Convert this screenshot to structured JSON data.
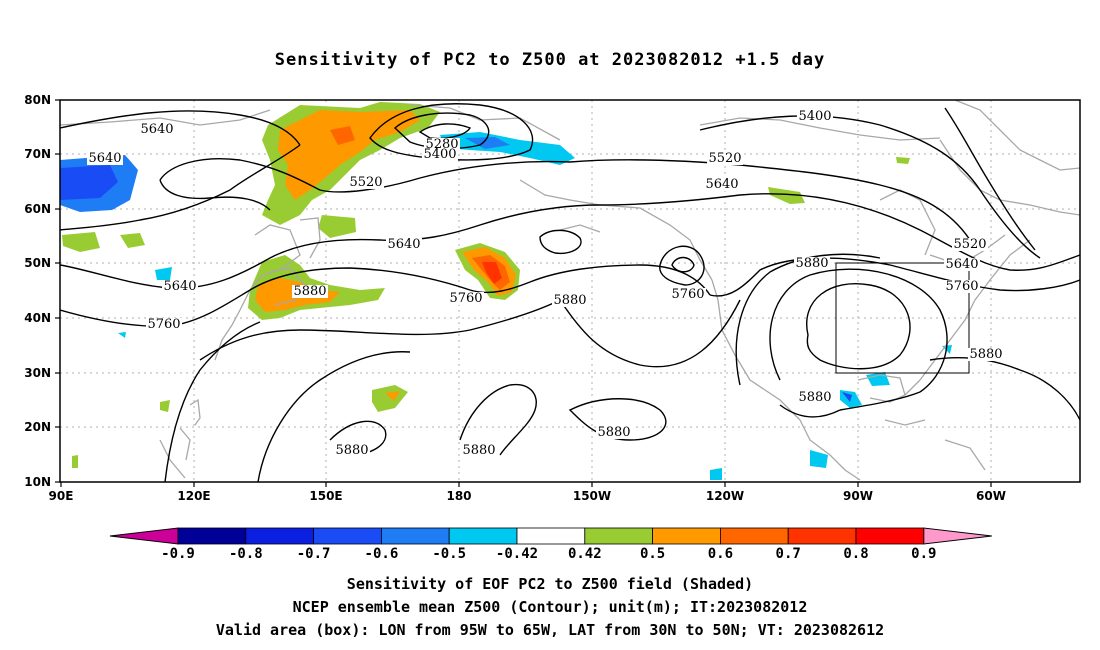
{
  "title": "Sensitivity of PC2 to Z500 at 2023082012 +1.5 day",
  "lat_ticks": [
    "80N",
    "70N",
    "60N",
    "50N",
    "40N",
    "30N",
    "20N",
    "10N"
  ],
  "lon_ticks": [
    "90E",
    "120E",
    "150E",
    "180",
    "150W",
    "120W",
    "90W",
    "60W"
  ],
  "contour_labels": [
    {
      "text": "5640"
    },
    {
      "text": "5640"
    },
    {
      "text": "5520"
    },
    {
      "text": "5280"
    },
    {
      "text": "5400"
    },
    {
      "text": "5400"
    },
    {
      "text": "5520"
    },
    {
      "text": "5640"
    },
    {
      "text": "5640"
    },
    {
      "text": "5520"
    },
    {
      "text": "5640"
    },
    {
      "text": "5760"
    },
    {
      "text": "5640"
    },
    {
      "text": "5880"
    },
    {
      "text": "5760"
    },
    {
      "text": "5760"
    },
    {
      "text": "5880"
    },
    {
      "text": "5760"
    },
    {
      "text": "5880"
    },
    {
      "text": "5880"
    },
    {
      "text": "5880"
    },
    {
      "text": "5880"
    },
    {
      "text": "5880"
    },
    {
      "text": "5880"
    }
  ],
  "colorbar": {
    "labels": [
      "-0.9",
      "-0.8",
      "-0.7",
      "-0.6",
      "-0.5",
      "-0.42",
      "0.42",
      "0.5",
      "0.6",
      "0.7",
      "0.8",
      "0.9"
    ],
    "colors": [
      "#000099",
      "#0a1fe0",
      "#1a4cf5",
      "#1e7df5",
      "#00c8f0",
      "#ffffff",
      "#99cc33",
      "#ff9900",
      "#ff6600",
      "#ff3300",
      "#ff0000"
    ],
    "low_end_color": "#cc0099",
    "high_end_color": "#ff99cc"
  },
  "valid_box": {
    "lon_w": -95,
    "lon_e": -65,
    "lat_s": 30,
    "lat_n": 50
  },
  "captions": {
    "line1": "Sensitivity of EOF PC2 to Z500 field (Shaded)",
    "line2": "NCEP ensemble mean Z500 (Contour); unit(m); IT:2023082012",
    "line3": "Valid area (box): LON from 95W to 65W, LAT from 30N to 50N; VT: 2023082612"
  }
}
